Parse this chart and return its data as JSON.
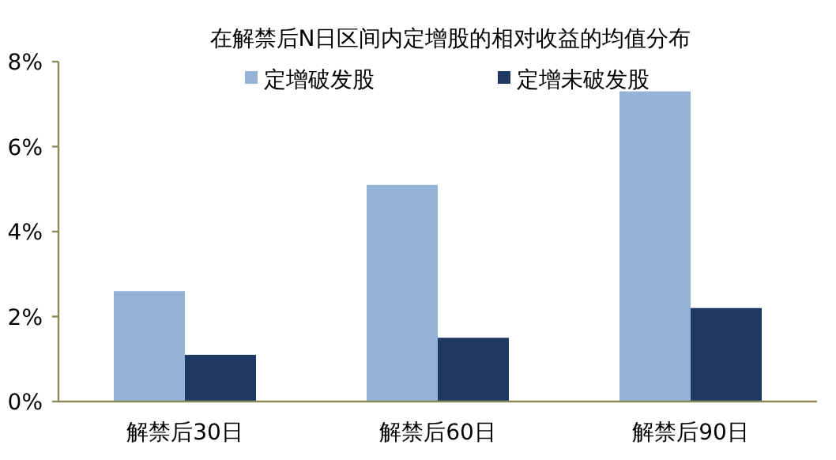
{
  "chart_data": {
    "type": "bar",
    "title": "在解禁后N日区间内定增股的相对收益的均值分布",
    "categories": [
      "解禁后30日",
      "解禁后60日",
      "解禁后90日"
    ],
    "series": [
      {
        "name": "定增破发股",
        "color": "#95b3d7",
        "values": [
          2.6,
          5.1,
          7.3
        ]
      },
      {
        "name": "定增未破发股",
        "color": "#1f3864",
        "values": [
          1.1,
          1.5,
          2.2
        ]
      }
    ],
    "ylim": [
      0,
      8
    ],
    "yticks": [
      {
        "value": 0,
        "label": "0%"
      },
      {
        "value": 2,
        "label": "2%"
      },
      {
        "value": 4,
        "label": "4%"
      },
      {
        "value": 6,
        "label": "6%"
      },
      {
        "value": 8,
        "label": "8%"
      }
    ],
    "legend": "top",
    "grid": false
  }
}
